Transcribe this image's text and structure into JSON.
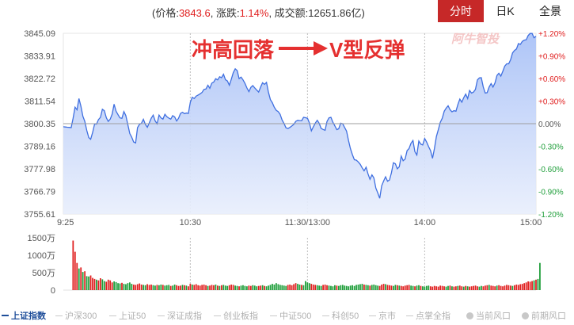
{
  "quote": {
    "price_label": "(价格:",
    "price": "3843.6",
    "change_label": ", 涨跌:",
    "change": "1.14%",
    "volume_label": ", 成交额:",
    "volume": "12651.86亿)"
  },
  "tabs": [
    "分时",
    "日K",
    "全景"
  ],
  "colors": {
    "up": "#e02020",
    "down": "#1f9e3a",
    "line": "#3f6fe0",
    "fill": "#bcd0fa",
    "accent": "#c62828"
  },
  "chart_data": {
    "type": "line",
    "annotation": "冲高回落 V型反弹",
    "annotation_text1": "冲高回落",
    "annotation_text2": "V型反弹",
    "watermark": "阿牛智投",
    "prev_close": 3800.35,
    "ylim": [
      3755.61,
      3845.09
    ],
    "y_ticks": [
      "3845.09",
      "3833.91",
      "3822.72",
      "3811.54",
      "3800.35",
      "3789.16",
      "3777.98",
      "3766.79",
      "3755.61"
    ],
    "y_right_ticks": [
      "+1.20%",
      "+0.90%",
      "+0.60%",
      "+0.30%",
      "0.00%",
      "-0.30%",
      "-0.60%",
      "-0.90%",
      "-1.20%"
    ],
    "x_ticks": [
      "9:25",
      "10:30",
      "11:30/13:00",
      "14:00",
      "15:00"
    ],
    "x_tick_index": [
      0,
      65,
      125,
      185,
      245
    ],
    "price": [
      3798.8,
      3798.7,
      3798.6,
      3798.5,
      3798.4,
      3803.0,
      3808.5,
      3807.2,
      3812.8,
      3809.0,
      3804.0,
      3801.5,
      3797.0,
      3793.5,
      3792.6,
      3796.0,
      3800.2,
      3800.1,
      3802.4,
      3803.5,
      3807.5,
      3806.8,
      3803.3,
      3801.5,
      3802.6,
      3805.1,
      3810.0,
      3806.5,
      3804.8,
      3803.2,
      3803.0,
      3806.3,
      3804.4,
      3800.0,
      3795.5,
      3793.7,
      3791.3,
      3790.8,
      3798.4,
      3800.0,
      3800.6,
      3802.5,
      3800.0,
      3798.6,
      3800.7,
      3803.0,
      3804.6,
      3801.8,
      3800.3,
      3804.6,
      3803.2,
      3802.6,
      3805.0,
      3803.8,
      3803.1,
      3802.6,
      3804.3,
      3803.7,
      3801.7,
      3803.0,
      3805.4,
      3806.0,
      3805.3,
      3805.6,
      3805.4,
      3811.0,
      3813.4,
      3812.8,
      3814.0,
      3814.5,
      3815.1,
      3815.8,
      3817.3,
      3817.5,
      3819.4,
      3817.9,
      3820.4,
      3821.0,
      3822.6,
      3822.0,
      3823.6,
      3823.1,
      3824.8,
      3822.1,
      3821.5,
      3819.4,
      3822.4,
      3825.6,
      3827.5,
      3826.6,
      3822.7,
      3823.4,
      3822.0,
      3820.3,
      3818.0,
      3816.2,
      3818.3,
      3819.2,
      3818.0,
      3817.0,
      3816.0,
      3818.5,
      3820.6,
      3819.8,
      3820.8,
      3816.0,
      3812.3,
      3810.7,
      3808.5,
      3807.0,
      3806.3,
      3805.0,
      3802.2,
      3800.4,
      3798.3,
      3797.9,
      3798.5,
      3799.2,
      3800.0,
      3801.5,
      3802.0,
      3801.9,
      3801.8,
      3803.5,
      3803.3,
      3803.0,
      3800.7,
      3796.8,
      3798.8,
      3800.6,
      3802.0,
      3800.5,
      3798.0,
      3797.5,
      3797.1,
      3801.4,
      3803.2,
      3803.5,
      3801.1,
      3799.3,
      3797.4,
      3797.8,
      3800.6,
      3800.3,
      3798.5,
      3796.7,
      3792.0,
      3788.0,
      3785.0,
      3782.5,
      3782.3,
      3781.4,
      3780.2,
      3778.5,
      3777.0,
      3778.8,
      3775.5,
      3772.8,
      3775.0,
      3773.5,
      3768.5,
      3766.0,
      3763.4,
      3769.6,
      3772.0,
      3774.0,
      3771.8,
      3772.5,
      3776.0,
      3781.0,
      3780.5,
      3778.0,
      3779.0,
      3784.3,
      3782.0,
      3782.8,
      3787.0,
      3788.0,
      3790.6,
      3792.0,
      3786.5,
      3784.8,
      3791.7,
      3790.2,
      3789.8,
      3793.0,
      3791.2,
      3789.0,
      3787.0,
      3783.2,
      3788.0,
      3794.0,
      3797.5,
      3801.0,
      3803.0,
      3806.5,
      3808.0,
      3809.2,
      3807.2,
      3806.2,
      3806.8,
      3806.5,
      3809.8,
      3812.5,
      3811.0,
      3813.2,
      3815.0,
      3812.8,
      3816.8,
      3815.5,
      3816.0,
      3817.3,
      3822.0,
      3823.0,
      3823.1,
      3818.5,
      3815.5,
      3815.7,
      3818.5,
      3820.2,
      3818.5,
      3820.5,
      3824.2,
      3825.3,
      3823.9,
      3826.3,
      3828.8,
      3830.0,
      3830.0,
      3832.0,
      3835.4,
      3836.6,
      3837.3,
      3840.0,
      3839.6,
      3841.1,
      3841.7,
      3841.9,
      3844.0,
      3845.0,
      3845.0,
      3842.9,
      3843.6
    ],
    "volume_ylim": [
      0,
      1500
    ],
    "volume_ticks": [
      "1500万",
      "1000万",
      "500万",
      "0"
    ],
    "volume_tick_values": [
      1500,
      1000,
      500,
      0
    ],
    "volume": [
      0,
      0,
      0,
      0,
      0,
      1420,
      1100,
      780,
      620,
      650,
      520,
      540,
      400,
      390,
      420,
      350,
      320,
      300,
      280,
      340,
      310,
      260,
      240,
      300,
      280,
      220,
      250,
      230,
      200,
      190,
      210,
      180,
      170,
      200,
      220,
      180,
      160,
      150,
      170,
      190,
      160,
      150,
      140,
      170,
      150,
      160,
      140,
      130,
      150,
      140,
      160,
      150,
      130,
      140,
      150,
      120,
      130,
      160,
      140,
      120,
      130,
      150,
      140,
      130,
      110,
      180,
      160,
      150,
      170,
      140,
      130,
      150,
      160,
      140,
      120,
      130,
      150,
      140,
      160,
      130,
      120,
      140,
      150,
      130,
      120,
      140,
      160,
      150,
      130,
      120,
      110,
      130,
      140,
      120,
      110,
      130,
      120,
      140,
      130,
      110,
      120,
      130,
      140,
      120,
      110,
      130,
      150,
      180,
      160,
      200,
      170,
      150,
      140,
      130,
      120,
      150,
      160,
      140,
      170,
      200,
      180,
      160,
      150,
      140,
      260,
      220,
      200,
      180,
      160,
      150,
      140,
      130,
      120,
      150,
      160,
      140,
      130,
      120,
      110,
      140,
      130,
      120,
      140,
      150,
      130,
      120,
      110,
      130,
      140,
      120,
      150,
      160,
      170,
      180,
      160,
      150,
      140,
      130,
      150,
      160,
      140,
      130,
      120,
      160,
      180,
      170,
      150,
      140,
      130,
      120,
      150,
      140,
      130,
      120,
      110,
      130,
      140,
      150,
      130,
      120,
      110,
      130,
      140,
      120,
      110,
      100,
      120,
      130,
      110,
      100,
      120,
      110,
      100,
      130,
      120,
      110,
      100,
      120,
      130,
      110,
      100,
      110,
      120,
      130,
      110,
      100,
      120,
      110,
      100,
      110,
      120,
      130,
      110,
      100,
      120,
      110,
      130,
      140,
      150,
      130,
      120,
      110,
      130,
      140,
      120,
      110,
      130,
      150,
      140,
      130,
      120,
      140,
      160,
      150,
      170,
      180,
      200,
      220,
      250,
      240,
      260,
      280,
      300,
      320,
      780
    ],
    "volume_dir": [
      0,
      0,
      0,
      0,
      0,
      1,
      1,
      1,
      -1,
      1,
      -1,
      1,
      -1,
      -1,
      1,
      1,
      1,
      -1,
      1,
      1,
      -1,
      -1,
      1,
      1,
      1,
      1,
      -1,
      -1,
      -1,
      -1,
      1,
      -1,
      -1,
      -1,
      -1,
      -1,
      1,
      1,
      1,
      1,
      1,
      -1,
      -1,
      1,
      1,
      1,
      -1,
      -1,
      1,
      -1,
      -1,
      1,
      -1,
      -1,
      -1,
      1,
      -1,
      -1,
      1,
      1,
      1,
      -1,
      1,
      -1,
      1,
      1,
      -1,
      1,
      1,
      1,
      1,
      1,
      1,
      1,
      -1,
      1,
      1,
      1,
      -1,
      1,
      -1,
      1,
      -1,
      -1,
      -1,
      1,
      1,
      1,
      -1,
      -1,
      1,
      -1,
      -1,
      -1,
      -1,
      1,
      1,
      -1,
      -1,
      -1,
      1,
      1,
      -1,
      1,
      -1,
      -1,
      -1,
      -1,
      -1,
      -1,
      -1,
      -1,
      -1,
      -1,
      -1,
      1,
      1,
      1,
      1,
      1,
      -1,
      -1,
      1,
      -1,
      -1,
      -1,
      -1,
      1,
      1,
      1,
      -1,
      -1,
      -1,
      1,
      1,
      1,
      -1,
      -1,
      -1,
      -1,
      1,
      -1,
      -1,
      -1,
      -1,
      -1,
      -1,
      -1,
      -1,
      -1,
      -1,
      -1,
      -1,
      -1,
      1,
      -1,
      -1,
      1,
      -1,
      -1,
      -1,
      -1,
      1,
      1,
      1,
      -1,
      1,
      1,
      1,
      -1,
      -1,
      1,
      -1,
      1,
      1,
      1,
      1,
      1,
      -1,
      -1,
      1,
      -1,
      -1,
      1,
      -1,
      -1,
      -1,
      -1,
      1,
      1,
      1,
      1,
      1,
      1,
      1,
      1,
      -1,
      -1,
      1,
      -1,
      1,
      1,
      -1,
      1,
      1,
      -1,
      1,
      -1,
      1,
      1,
      1,
      1,
      1,
      -1,
      -1,
      1,
      1,
      1,
      -1,
      1,
      1,
      1,
      -1,
      1,
      1,
      1,
      1,
      1,
      1,
      1,
      -1,
      1,
      1,
      1,
      1,
      1,
      1,
      1,
      1,
      1,
      1,
      -1,
      1
    ]
  },
  "legend": [
    "上证指数",
    "沪深300",
    "上证50",
    "深证成指",
    "创业板指",
    "中证500",
    "科创50",
    "京市",
    "点掌全指",
    "当前风口",
    "前期风口"
  ]
}
